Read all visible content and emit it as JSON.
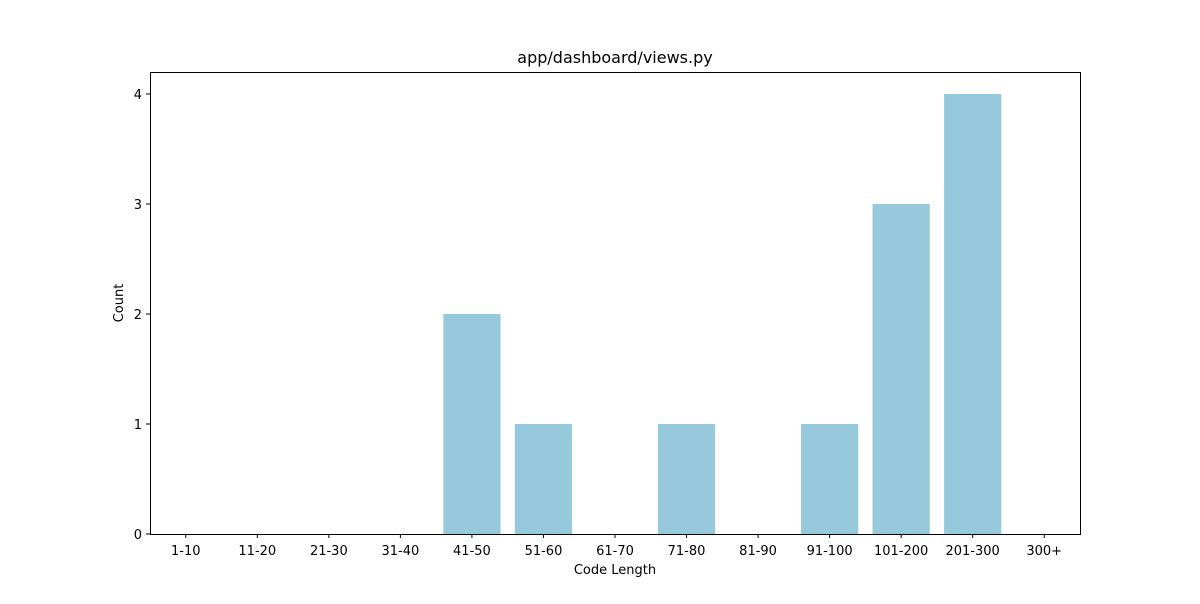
{
  "chart_data": {
    "type": "bar",
    "title": "app/dashboard/views.py",
    "xlabel": "Code Length",
    "ylabel": "Count",
    "categories": [
      "1-10",
      "11-20",
      "21-30",
      "31-40",
      "41-50",
      "51-60",
      "61-70",
      "71-80",
      "81-90",
      "91-100",
      "101-200",
      "201-300",
      "300+"
    ],
    "values": [
      0,
      0,
      0,
      0,
      2,
      1,
      0,
      1,
      0,
      1,
      3,
      4,
      0
    ],
    "ylim": [
      0,
      4.2
    ],
    "yticks": [
      0,
      1,
      2,
      3,
      4
    ],
    "grid": false,
    "legend": "none",
    "bar_color": "#96c9dc"
  }
}
